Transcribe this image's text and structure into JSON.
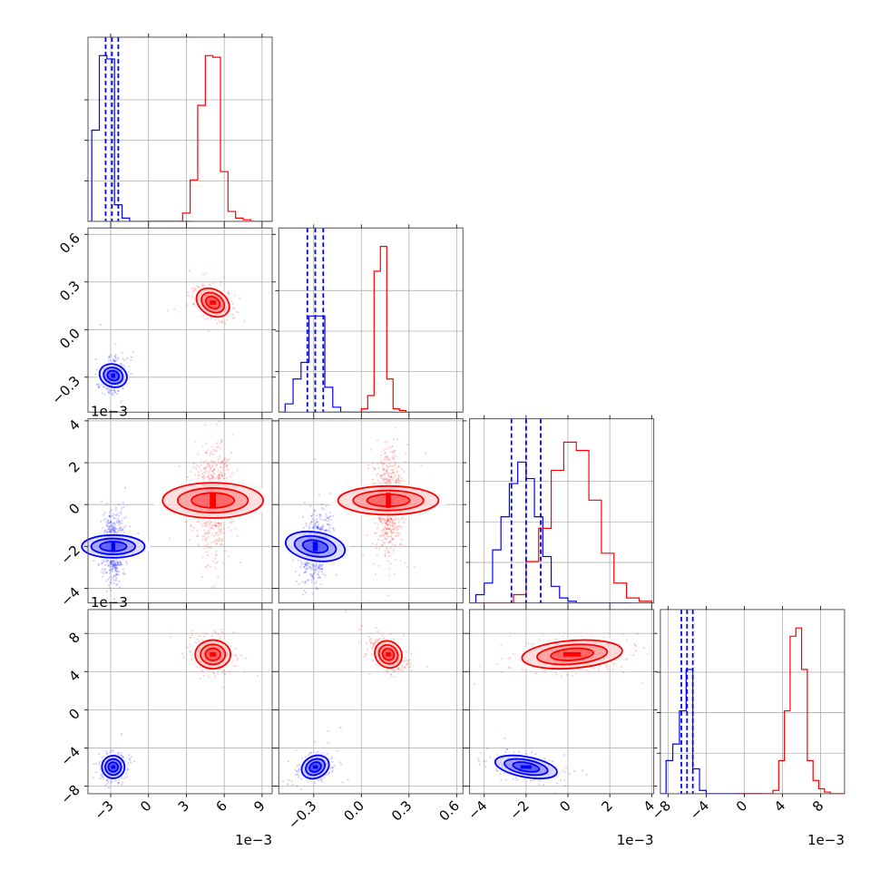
{
  "chart_data": {
    "type": "corner",
    "description_colors": {
      "blue": "#0000ff",
      "red": "#ff0000",
      "grid": "#b0b0b0",
      "frame": "#000000"
    },
    "parameters": [
      {
        "id": "p0",
        "range": [
          -0.0048,
          0.0098
        ],
        "ticks": [
          -3,
          0,
          3,
          6,
          9
        ],
        "tick_labels": [
          "−3",
          "0",
          "3",
          "6",
          "9"
        ],
        "offset_label": "1e−3"
      },
      {
        "id": "p1",
        "range": [
          -0.52,
          0.64
        ],
        "ticks": [
          -0.3,
          0.0,
          0.3,
          0.6
        ],
        "tick_labels": [
          "−0.3",
          "0.0",
          "0.3",
          "0.6"
        ],
        "offset_label": ""
      },
      {
        "id": "p2",
        "range": [
          -0.0047,
          0.0041
        ],
        "ticks": [
          -4,
          -2,
          0,
          2,
          4
        ],
        "tick_labels": [
          "−4",
          "−2",
          "0",
          "2",
          "4"
        ],
        "offset_label": "1e−3"
      },
      {
        "id": "p3",
        "range": [
          -0.0088,
          0.0105
        ],
        "ticks": [
          -8,
          -4,
          0,
          4,
          8
        ],
        "tick_labels": [
          "−8",
          "−4",
          "0",
          "4",
          "8"
        ],
        "offset_label": "1e−3"
      }
    ],
    "series": [
      {
        "color": "#0000ff",
        "means": [
          -0.0028,
          -0.29,
          -0.002,
          -0.006
        ],
        "stds": [
          0.00045,
          0.045,
          0.00075,
          0.0006
        ],
        "quantiles": [
          [
            -0.0034,
            -0.0029,
            -0.0024
          ],
          [
            -0.34,
            -0.29,
            -0.24
          ],
          [
            -0.0027,
            -0.002,
            -0.0013
          ],
          [
            -0.0066,
            -0.006,
            -0.0054
          ]
        ],
        "correlations": {
          "1-0": 0.2,
          "2-0": 0.0,
          "2-1": 0.3,
          "3-0": 0.1,
          "3-1": 0.3,
          "3-2": -0.45
        }
      },
      {
        "color": "#ff0000",
        "means": [
          0.0051,
          0.17,
          0.0002,
          0.0058
        ],
        "stds": [
          0.0007,
          0.045,
          0.0012,
          0.00075
        ],
        "quantiles": null,
        "correlations": {
          "1-0": -0.45,
          "2-0": 0.0,
          "2-1": 0.0,
          "3-0": 0.0,
          "3-1": -0.45,
          "3-2": 0.25
        }
      }
    ],
    "histograms": [
      {
        "param": 0,
        "blue": {
          "edges": [
            -4.5,
            -3.9,
            -3.3,
            -2.7,
            -2.1,
            -1.5,
            -0.9
          ],
          "counts": [
            0.55,
            1.0,
            0.98,
            0.1,
            0.02,
            0.0
          ]
        },
        "red": {
          "edges": [
            2.7,
            3.3,
            3.9,
            4.5,
            5.1,
            5.7,
            6.3,
            6.9,
            7.5,
            8.1
          ],
          "counts": [
            0.05,
            0.25,
            0.7,
            1.0,
            0.99,
            0.3,
            0.06,
            0.02,
            0.01
          ]
        }
      },
      {
        "param": 1,
        "blue": {
          "edges": [
            -0.48,
            -0.43,
            -0.38,
            -0.33,
            -0.28,
            -0.23,
            -0.18,
            -0.13
          ],
          "counts": [
            0.05,
            0.2,
            0.3,
            0.58,
            0.58,
            0.15,
            0.03
          ]
        },
        "red": {
          "edges": [
            0.0,
            0.04,
            0.08,
            0.12,
            0.16,
            0.2,
            0.24,
            0.28
          ],
          "counts": [
            0.02,
            0.1,
            0.85,
            1.0,
            0.2,
            0.02,
            0.01
          ]
        }
      },
      {
        "param": 2,
        "blue": {
          "edges": [
            -4.4,
            -4.0,
            -3.6,
            -3.2,
            -2.8,
            -2.4,
            -2.0,
            -1.6,
            -1.2,
            -0.8,
            -0.4,
            0.0,
            0.4
          ],
          "counts": [
            0.05,
            0.12,
            0.32,
            0.52,
            0.72,
            0.85,
            0.75,
            0.52,
            0.28,
            0.1,
            0.03,
            0.01
          ]
        },
        "red": {
          "edges": [
            -2.6,
            -2.0,
            -1.4,
            -0.8,
            -0.2,
            0.4,
            1.0,
            1.6,
            2.2,
            2.8,
            3.4,
            4.0
          ],
          "counts": [
            0.05,
            0.25,
            0.45,
            0.8,
            0.97,
            0.92,
            0.62,
            0.3,
            0.12,
            0.03,
            0.01
          ]
        }
      },
      {
        "param": 3,
        "blue": {
          "edges": [
            -8.2,
            -7.5,
            -6.8,
            -6.1,
            -5.4,
            -4.7,
            -4.0
          ],
          "counts": [
            0.2,
            0.3,
            0.5,
            0.75,
            0.15,
            0.02
          ]
        },
        "red": {
          "edges": [
            3.0,
            3.6,
            4.2,
            4.8,
            5.4,
            6.0,
            6.6,
            7.2,
            7.8,
            8.4,
            9.0,
            9.6
          ],
          "counts": [
            0.02,
            0.2,
            0.5,
            0.95,
            1.0,
            0.75,
            0.2,
            0.08,
            0.03,
            0.01,
            0.0
          ]
        }
      }
    ],
    "grid": true,
    "legend": "none"
  }
}
